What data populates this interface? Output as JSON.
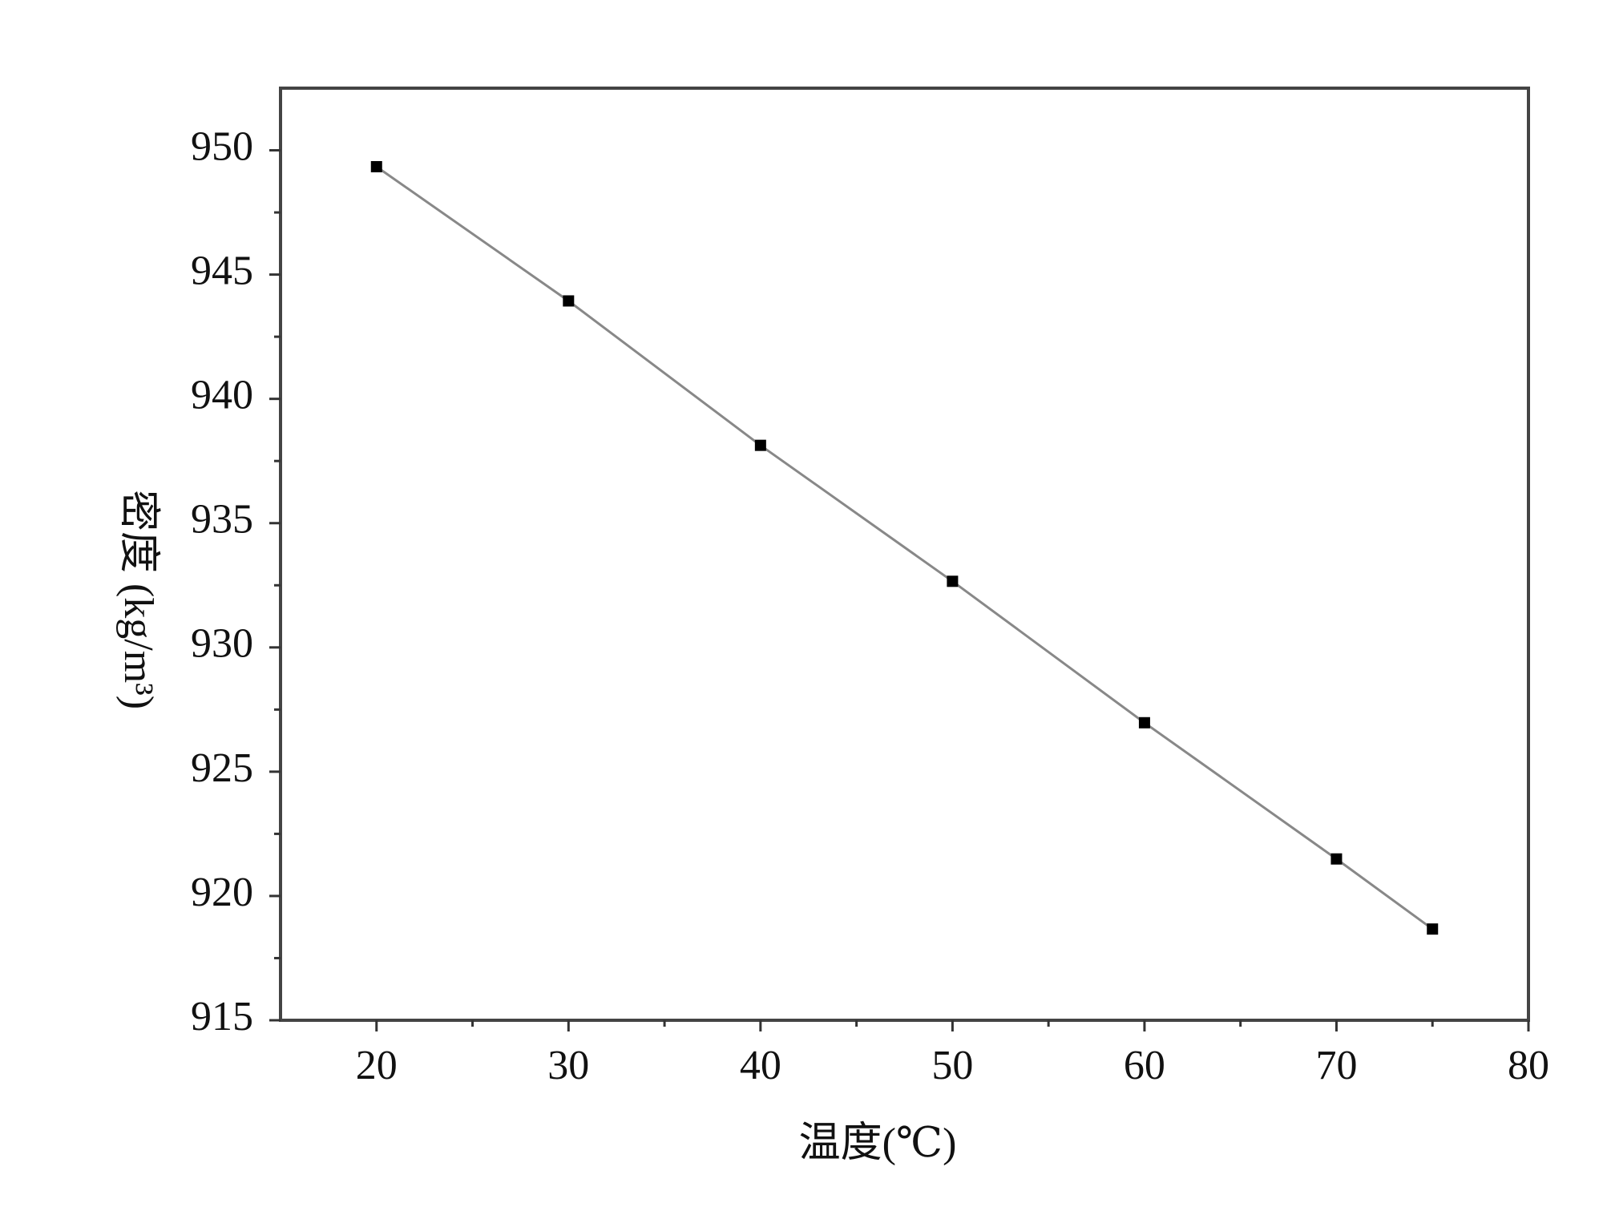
{
  "chart_data": {
    "type": "line",
    "x_label": "温度(℃)",
    "y_label": "密度 (kg/m³)",
    "x": [
      20,
      30,
      40,
      50,
      60,
      70,
      75
    ],
    "series": [
      {
        "color": "#888888",
        "marker_color": "#000000",
        "values": [
          949.34,
          943.94,
          938.13,
          932.66,
          926.97,
          921.49,
          918.67
        ]
      }
    ],
    "xlim": [
      15,
      80
    ],
    "xticks": [
      20,
      30,
      40,
      50,
      60,
      70,
      80
    ],
    "ylim": [
      915,
      952.5
    ],
    "yticks": [
      915,
      920,
      925,
      930,
      935,
      940,
      945,
      950
    ],
    "grid": false
  }
}
